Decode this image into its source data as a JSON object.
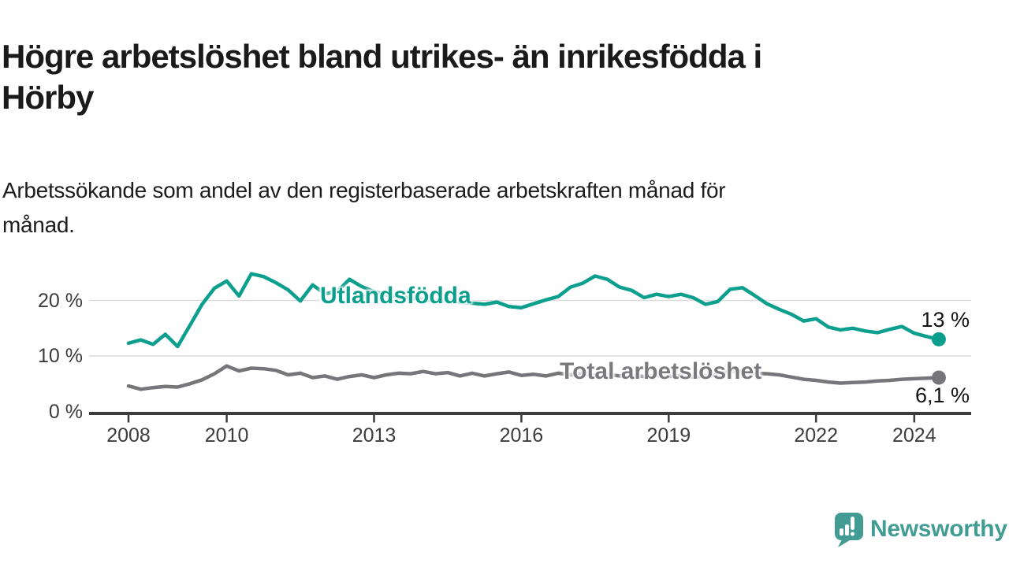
{
  "title_lines": [
    "Högre arbetslöshet bland utrikes- än inrikesfödda i",
    "Hörby"
  ],
  "subtitle_lines": [
    "Arbetssökande som andel av den registerbaserade arbetskraften månad för",
    "månad."
  ],
  "chart_data": {
    "type": "line",
    "title": "Högre arbetslöshet bland utrikes- än inrikesfödda i Hörby",
    "subtitle": "Arbetssökande som andel av den registerbaserade arbetskraften månad för månad.",
    "x_start": 2008.0,
    "x_step": 0.25,
    "x_ticks": [
      2008,
      2010,
      2013,
      2016,
      2019,
      2022,
      2024
    ],
    "y_ticks": [
      0,
      10,
      20
    ],
    "y_tick_suffix": " %",
    "ylim": [
      0,
      26
    ],
    "xlim": [
      2007.2,
      2025.2
    ],
    "grid": "horizontal",
    "legend_position": "inline-labels",
    "colors": {
      "accent_teal": "#0d9f8d",
      "line_gray": "#76767a",
      "axis": "#3c3c3c",
      "gridline": "#dcdcdc"
    },
    "series": [
      {
        "name": "Utlandsfödda",
        "color": "#0d9f8d",
        "end_label": "13 %",
        "end_value": 13,
        "values": [
          12.3,
          12.9,
          12.1,
          13.9,
          11.7,
          15.5,
          19.3,
          22.2,
          23.5,
          20.8,
          24.8,
          24.3,
          23.2,
          21.9,
          19.9,
          22.8,
          21.2,
          21.6,
          23.8,
          22.5,
          21.6,
          21.0,
          20.7,
          20.4,
          20.2,
          19.9,
          20.1,
          19.7,
          19.5,
          19.3,
          19.7,
          18.9,
          18.7,
          19.4,
          20.1,
          20.7,
          22.4,
          23.1,
          24.4,
          23.8,
          22.4,
          21.8,
          20.5,
          21.1,
          20.7,
          21.1,
          20.5,
          19.3,
          19.8,
          22.0,
          22.3,
          20.9,
          19.4,
          18.4,
          17.5,
          16.3,
          16.7,
          15.2,
          14.7,
          15.0,
          14.5,
          14.2,
          14.8,
          15.3,
          14.1,
          13.5,
          13.0
        ]
      },
      {
        "name": "Total arbetslöshet",
        "color": "#76767a",
        "end_label": "6,1 %",
        "end_value": 6.1,
        "values": [
          4.6,
          4.0,
          4.3,
          4.5,
          4.4,
          5.0,
          5.7,
          6.8,
          8.2,
          7.3,
          7.8,
          7.7,
          7.4,
          6.6,
          6.9,
          6.1,
          6.4,
          5.8,
          6.3,
          6.6,
          6.1,
          6.6,
          6.9,
          6.8,
          7.2,
          6.8,
          7.0,
          6.4,
          6.9,
          6.4,
          6.8,
          7.1,
          6.5,
          6.7,
          6.4,
          6.9,
          6.6,
          6.8,
          6.5,
          6.7,
          6.4,
          6.6,
          6.3,
          6.5,
          6.3,
          6.5,
          6.2,
          6.4,
          6.6,
          7.3,
          7.1,
          6.9,
          6.8,
          6.6,
          6.2,
          5.8,
          5.6,
          5.3,
          5.1,
          5.2,
          5.3,
          5.5,
          5.6,
          5.8,
          5.9,
          6.0,
          6.1
        ]
      }
    ]
  },
  "logo": {
    "text": "Newsworthy",
    "icon": "newsworthy-speech-bubble-barchart-icon",
    "color": "#419d94"
  }
}
